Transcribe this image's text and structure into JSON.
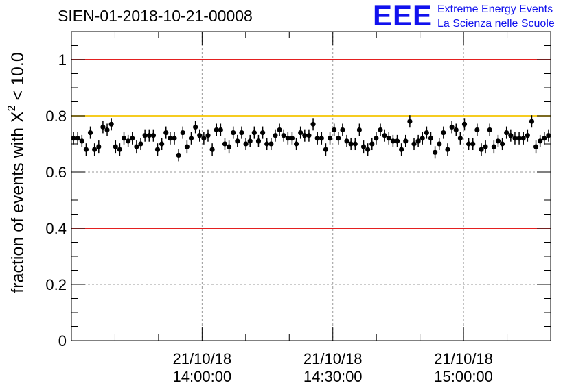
{
  "header": {
    "title": "SIEN-01-2018-10-21-00008",
    "logo_mark": "EEE",
    "logo_line1": "Extreme Energy Events",
    "logo_line2": "La Scienza nelle Scuole"
  },
  "colors": {
    "marker": "#000000",
    "red_line": "#e00000",
    "yellow_line": "#f5c400",
    "grid": "#999999",
    "logo": "#1111ee"
  },
  "chart_data": {
    "type": "scatter",
    "title": "SIEN-01-2018-10-21-00008",
    "ylabel": "fraction of events with χ² < 10.0",
    "ylabel_main": "fraction of events with X",
    "ylabel_sup": "2",
    "ylabel_tail": " < 10.0",
    "xlabel": "",
    "ylim": [
      0,
      1.1
    ],
    "yticks": [
      0,
      0.2,
      0.4,
      0.6,
      0.8,
      1
    ],
    "ytick_labels": [
      "0",
      "0.2",
      "0.4",
      "0.6",
      "0.8",
      "1"
    ],
    "xlim_minutes": [
      -30,
      80
    ],
    "xticks_minutes": [
      0,
      30,
      60
    ],
    "xtick_labels": [
      [
        "21/10/18",
        "14:00:00"
      ],
      [
        "21/10/18",
        "14:30:00"
      ],
      [
        "21/10/18",
        "15:00:00"
      ]
    ],
    "grid": true,
    "reference_lines": [
      {
        "y": 1.0,
        "color": "red"
      },
      {
        "y": 0.8,
        "color": "yellow"
      },
      {
        "y": 0.4,
        "color": "red"
      }
    ],
    "error_bar": 0.022,
    "series": [
      {
        "values": [
          0.72,
          0.72,
          0.71,
          0.68,
          0.74,
          0.68,
          0.69,
          0.76,
          0.75,
          0.77,
          0.69,
          0.68,
          0.72,
          0.71,
          0.72,
          0.69,
          0.7,
          0.73,
          0.73,
          0.73,
          0.68,
          0.7,
          0.74,
          0.72,
          0.72,
          0.66,
          0.74,
          0.69,
          0.72,
          0.76,
          0.73,
          0.72,
          0.73,
          0.68,
          0.75,
          0.75,
          0.7,
          0.69,
          0.74,
          0.71,
          0.74,
          0.7,
          0.71,
          0.74,
          0.71,
          0.74,
          0.7,
          0.7,
          0.73,
          0.75,
          0.73,
          0.72,
          0.72,
          0.7,
          0.74,
          0.73,
          0.73,
          0.77,
          0.72,
          0.72,
          0.68,
          0.72,
          0.75,
          0.72,
          0.75,
          0.71,
          0.7,
          0.7,
          0.75,
          0.69,
          0.68,
          0.7,
          0.72,
          0.75,
          0.73,
          0.72,
          0.71,
          0.71,
          0.68,
          0.71,
          0.78,
          0.7,
          0.71,
          0.72,
          0.74,
          0.72,
          0.67,
          0.7,
          0.74,
          0.68,
          0.76,
          0.75,
          0.72,
          0.77,
          0.7,
          0.7,
          0.75,
          0.68,
          0.69,
          0.75,
          0.69,
          0.71,
          0.7,
          0.74,
          0.73,
          0.72,
          0.72,
          0.72,
          0.73,
          0.78,
          0.69,
          0.71,
          0.72,
          0.73
        ]
      }
    ]
  }
}
